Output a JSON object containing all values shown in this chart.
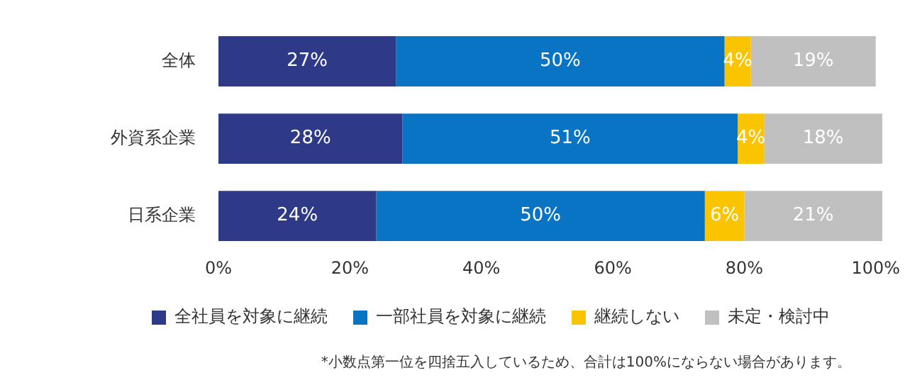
{
  "chart_data": {
    "type": "bar",
    "orientation": "horizontal",
    "stacked": true,
    "categories": [
      "全体",
      "外資系企業",
      "日系企業"
    ],
    "series": [
      {
        "name": "全社員を対象に継続",
        "color": "#2e3a87",
        "values": [
          27,
          28,
          24
        ],
        "value_labels": [
          "27%",
          "28%",
          "24%"
        ]
      },
      {
        "name": "一部社員を対象に継続",
        "color": "#0a74c4",
        "values": [
          50,
          51,
          50
        ],
        "value_labels": [
          "50%",
          "51%",
          "50%"
        ]
      },
      {
        "name": "継続しない",
        "color": "#fbc400",
        "values": [
          4,
          4,
          6
        ],
        "value_labels": [
          "4%",
          "4%",
          "6%"
        ]
      },
      {
        "name": "未定・検討中",
        "color": "#c0c0c0",
        "values": [
          19,
          18,
          21
        ],
        "value_labels": [
          "19%",
          "18%",
          "21%"
        ]
      }
    ],
    "xlim": [
      0,
      101
    ],
    "xticks": [
      {
        "value": 0,
        "label": "0%"
      },
      {
        "value": 20,
        "label": "20%"
      },
      {
        "value": 40,
        "label": "40%"
      },
      {
        "value": 60,
        "label": "60%"
      },
      {
        "value": 80,
        "label": "80%"
      },
      {
        "value": 100,
        "label": "100%"
      }
    ],
    "grid": false,
    "legend": "bottom",
    "annotations": [
      "*小数点第一位を四捨五入しているため、合計は100%にならない場合があります。"
    ]
  }
}
